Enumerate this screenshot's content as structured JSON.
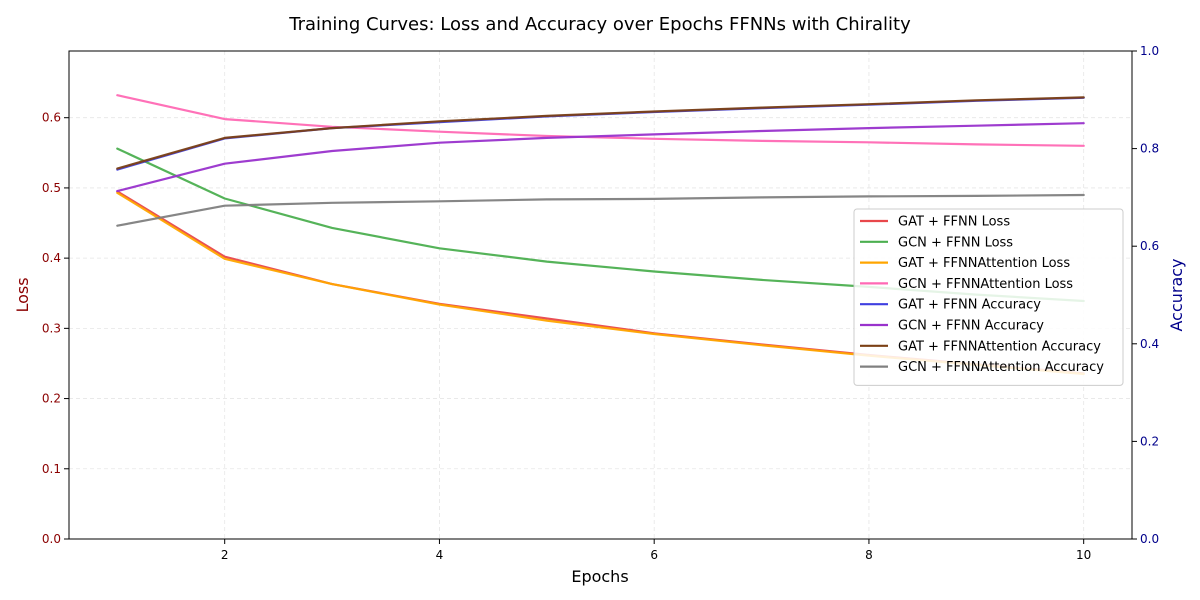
{
  "chart_data": {
    "type": "line",
    "title": "Training Curves: Loss and Accuracy over Epochs FFNNs with Chirality",
    "xlabel": "Epochs",
    "ylabel_left": "Loss",
    "ylabel_right": "Accuracy",
    "x": [
      1,
      2,
      3,
      4,
      5,
      6,
      7,
      8,
      9,
      10
    ],
    "xlim": [
      0.55,
      10.45
    ],
    "xticks": [
      2,
      4,
      6,
      8,
      10
    ],
    "ylim_left": [
      0,
      0.695
    ],
    "yticks_left": [
      0.0,
      0.1,
      0.2,
      0.3,
      0.4,
      0.5,
      0.6
    ],
    "ylim_right": [
      0,
      1.0
    ],
    "yticks_right": [
      0.0,
      0.2,
      0.4,
      0.6,
      0.8,
      1.0
    ],
    "grid": true,
    "legend_position": "center-right",
    "left_axis_color": "#8b0000",
    "right_axis_color": "#00008b",
    "series": [
      {
        "name": "GAT + FFNN Loss",
        "axis": "left",
        "color": "#e8474b",
        "values": [
          0.495,
          0.402,
          0.363,
          0.335,
          0.314,
          0.293,
          0.277,
          0.262,
          0.249,
          0.236
        ]
      },
      {
        "name": "GCN + FFNN Loss",
        "axis": "left",
        "color": "#4caf50",
        "values": [
          0.556,
          0.485,
          0.443,
          0.414,
          0.395,
          0.381,
          0.369,
          0.359,
          0.348,
          0.339
        ]
      },
      {
        "name": "GAT + FFNNAttention Loss",
        "axis": "left",
        "color": "#ffa500",
        "values": [
          0.493,
          0.399,
          0.363,
          0.334,
          0.311,
          0.292,
          0.276,
          0.261,
          0.248,
          0.235
        ]
      },
      {
        "name": "GCN + FFNNAttention Loss",
        "axis": "left",
        "color": "#ff69b4",
        "values": [
          0.632,
          0.598,
          0.587,
          0.58,
          0.574,
          0.57,
          0.567,
          0.565,
          0.562,
          0.56
        ]
      },
      {
        "name": "GAT + FFNN Accuracy",
        "axis": "right",
        "color": "#3f3fe0",
        "values": [
          0.757,
          0.821,
          0.842,
          0.854,
          0.866,
          0.875,
          0.883,
          0.89,
          0.898,
          0.904
        ]
      },
      {
        "name": "GCN + FFNN Accuracy",
        "axis": "right",
        "color": "#9932cc",
        "values": [
          0.713,
          0.769,
          0.795,
          0.812,
          0.822,
          0.829,
          0.836,
          0.842,
          0.847,
          0.852
        ]
      },
      {
        "name": "GAT + FFNNAttention Accuracy",
        "axis": "right",
        "color": "#7b4015",
        "values": [
          0.759,
          0.822,
          0.842,
          0.856,
          0.867,
          0.876,
          0.884,
          0.891,
          0.899,
          0.905
        ]
      },
      {
        "name": "GCN + FFNNAttention Accuracy",
        "axis": "right",
        "color": "#808080",
        "values": [
          0.642,
          0.683,
          0.689,
          0.692,
          0.696,
          0.697,
          0.7,
          0.702,
          0.703,
          0.705
        ]
      }
    ]
  }
}
